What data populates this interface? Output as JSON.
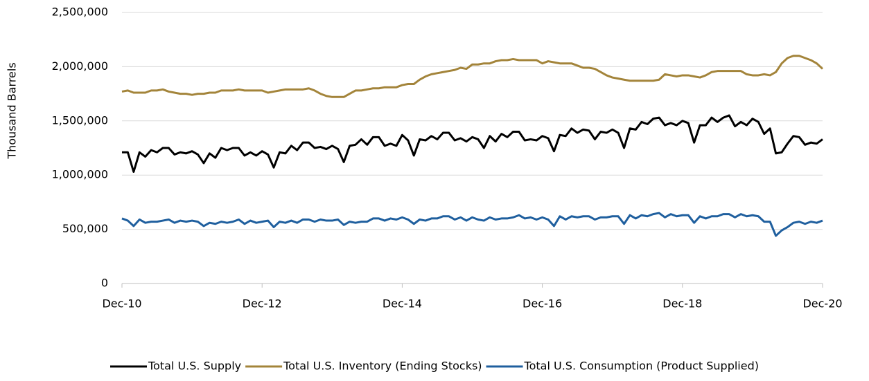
{
  "chart_data": {
    "type": "line",
    "y_label": "Thousand Barrels",
    "categories": [
      "Dec-10",
      null,
      null,
      null,
      null,
      null,
      null,
      null,
      null,
      null,
      null,
      null,
      null,
      null,
      null,
      null,
      null,
      null,
      null,
      null,
      null,
      null,
      null,
      null,
      "Dec-12",
      null,
      null,
      null,
      null,
      null,
      null,
      null,
      null,
      null,
      null,
      null,
      null,
      null,
      null,
      null,
      null,
      null,
      null,
      null,
      null,
      null,
      null,
      null,
      "Dec-14",
      null,
      null,
      null,
      null,
      null,
      null,
      null,
      null,
      null,
      null,
      null,
      null,
      null,
      null,
      null,
      null,
      null,
      null,
      null,
      null,
      null,
      null,
      null,
      "Dec-16",
      null,
      null,
      null,
      null,
      null,
      null,
      null,
      null,
      null,
      null,
      null,
      null,
      null,
      null,
      null,
      null,
      null,
      null,
      null,
      null,
      null,
      null,
      null,
      "Dec-18",
      null,
      null,
      null,
      null,
      null,
      null,
      null,
      null,
      null,
      null,
      null,
      null,
      null,
      null,
      null,
      null,
      null,
      null,
      null,
      null,
      null,
      null,
      null,
      "Dec-20"
    ],
    "series": [
      {
        "name": "Total U.S. Supply",
        "color": "#000000",
        "values": [
          1210000,
          1210000,
          1030000,
          1210000,
          1170000,
          1230000,
          1210000,
          1250000,
          1250000,
          1190000,
          1210000,
          1200000,
          1220000,
          1190000,
          1110000,
          1200000,
          1160000,
          1250000,
          1230000,
          1250000,
          1250000,
          1180000,
          1210000,
          1180000,
          1220000,
          1190000,
          1070000,
          1210000,
          1200000,
          1270000,
          1230000,
          1300000,
          1300000,
          1250000,
          1260000,
          1240000,
          1270000,
          1240000,
          1120000,
          1270000,
          1280000,
          1330000,
          1280000,
          1350000,
          1350000,
          1270000,
          1290000,
          1270000,
          1370000,
          1320000,
          1180000,
          1330000,
          1320000,
          1360000,
          1330000,
          1390000,
          1390000,
          1320000,
          1340000,
          1310000,
          1350000,
          1330000,
          1250000,
          1360000,
          1310000,
          1380000,
          1350000,
          1400000,
          1400000,
          1320000,
          1330000,
          1320000,
          1360000,
          1340000,
          1220000,
          1370000,
          1360000,
          1430000,
          1390000,
          1420000,
          1410000,
          1330000,
          1400000,
          1390000,
          1420000,
          1390000,
          1250000,
          1430000,
          1420000,
          1490000,
          1470000,
          1520000,
          1530000,
          1460000,
          1480000,
          1460000,
          1500000,
          1480000,
          1300000,
          1460000,
          1460000,
          1530000,
          1490000,
          1530000,
          1550000,
          1450000,
          1490000,
          1460000,
          1520000,
          1490000,
          1380000,
          1430000,
          1200000,
          1210000,
          1290000,
          1360000,
          1350000,
          1280000,
          1300000,
          1290000,
          1330000
        ]
      },
      {
        "name": "Total U.S. Inventory (Ending Stocks)",
        "color": "#a3843a",
        "values": [
          1770000,
          1780000,
          1760000,
          1760000,
          1760000,
          1780000,
          1780000,
          1790000,
          1770000,
          1760000,
          1750000,
          1750000,
          1740000,
          1750000,
          1750000,
          1760000,
          1760000,
          1780000,
          1780000,
          1780000,
          1790000,
          1780000,
          1780000,
          1780000,
          1780000,
          1760000,
          1770000,
          1780000,
          1790000,
          1790000,
          1790000,
          1790000,
          1800000,
          1780000,
          1750000,
          1730000,
          1720000,
          1720000,
          1720000,
          1750000,
          1780000,
          1780000,
          1790000,
          1800000,
          1800000,
          1810000,
          1810000,
          1810000,
          1830000,
          1840000,
          1840000,
          1880000,
          1910000,
          1930000,
          1940000,
          1950000,
          1960000,
          1970000,
          1990000,
          1980000,
          2020000,
          2020000,
          2030000,
          2030000,
          2050000,
          2060000,
          2060000,
          2070000,
          2060000,
          2060000,
          2060000,
          2060000,
          2030000,
          2050000,
          2040000,
          2030000,
          2030000,
          2030000,
          2010000,
          1990000,
          1990000,
          1980000,
          1950000,
          1920000,
          1900000,
          1890000,
          1880000,
          1870000,
          1870000,
          1870000,
          1870000,
          1870000,
          1880000,
          1930000,
          1920000,
          1910000,
          1920000,
          1920000,
          1910000,
          1900000,
          1920000,
          1950000,
          1960000,
          1960000,
          1960000,
          1960000,
          1960000,
          1930000,
          1920000,
          1920000,
          1930000,
          1920000,
          1950000,
          2030000,
          2080000,
          2100000,
          2100000,
          2080000,
          2060000,
          2030000,
          1980000
        ]
      },
      {
        "name": "Total U.S. Consumption (Product Supplied)",
        "color": "#1f5f9e",
        "values": [
          600000,
          580000,
          530000,
          590000,
          560000,
          570000,
          570000,
          580000,
          590000,
          560000,
          580000,
          570000,
          580000,
          570000,
          530000,
          560000,
          550000,
          570000,
          560000,
          570000,
          590000,
          550000,
          580000,
          560000,
          570000,
          580000,
          520000,
          570000,
          560000,
          580000,
          560000,
          590000,
          590000,
          570000,
          590000,
          580000,
          580000,
          590000,
          540000,
          570000,
          560000,
          570000,
          570000,
          600000,
          600000,
          580000,
          600000,
          590000,
          610000,
          590000,
          550000,
          590000,
          580000,
          600000,
          600000,
          620000,
          620000,
          590000,
          610000,
          580000,
          610000,
          590000,
          580000,
          610000,
          590000,
          600000,
          600000,
          610000,
          630000,
          600000,
          610000,
          590000,
          610000,
          590000,
          530000,
          620000,
          590000,
          620000,
          610000,
          620000,
          620000,
          590000,
          610000,
          610000,
          620000,
          620000,
          550000,
          630000,
          600000,
          630000,
          620000,
          640000,
          650000,
          610000,
          640000,
          620000,
          630000,
          630000,
          560000,
          620000,
          600000,
          620000,
          620000,
          640000,
          640000,
          610000,
          640000,
          620000,
          630000,
          620000,
          570000,
          570000,
          440000,
          490000,
          520000,
          560000,
          570000,
          550000,
          570000,
          560000,
          580000
        ]
      }
    ],
    "ylim": [
      0,
      2500000
    ],
    "yticks": [
      0,
      {
        "value": 500000,
        "label": "500,000"
      },
      {
        "value": 1000000,
        "label": "1,000,000"
      },
      {
        "value": 1500000,
        "label": "1,500,000"
      },
      {
        "value": 2000000,
        "label": "2,000,000"
      },
      {
        "value": 2500000,
        "label": "2,500,000"
      }
    ],
    "grid": true,
    "legend": "bottom"
  }
}
